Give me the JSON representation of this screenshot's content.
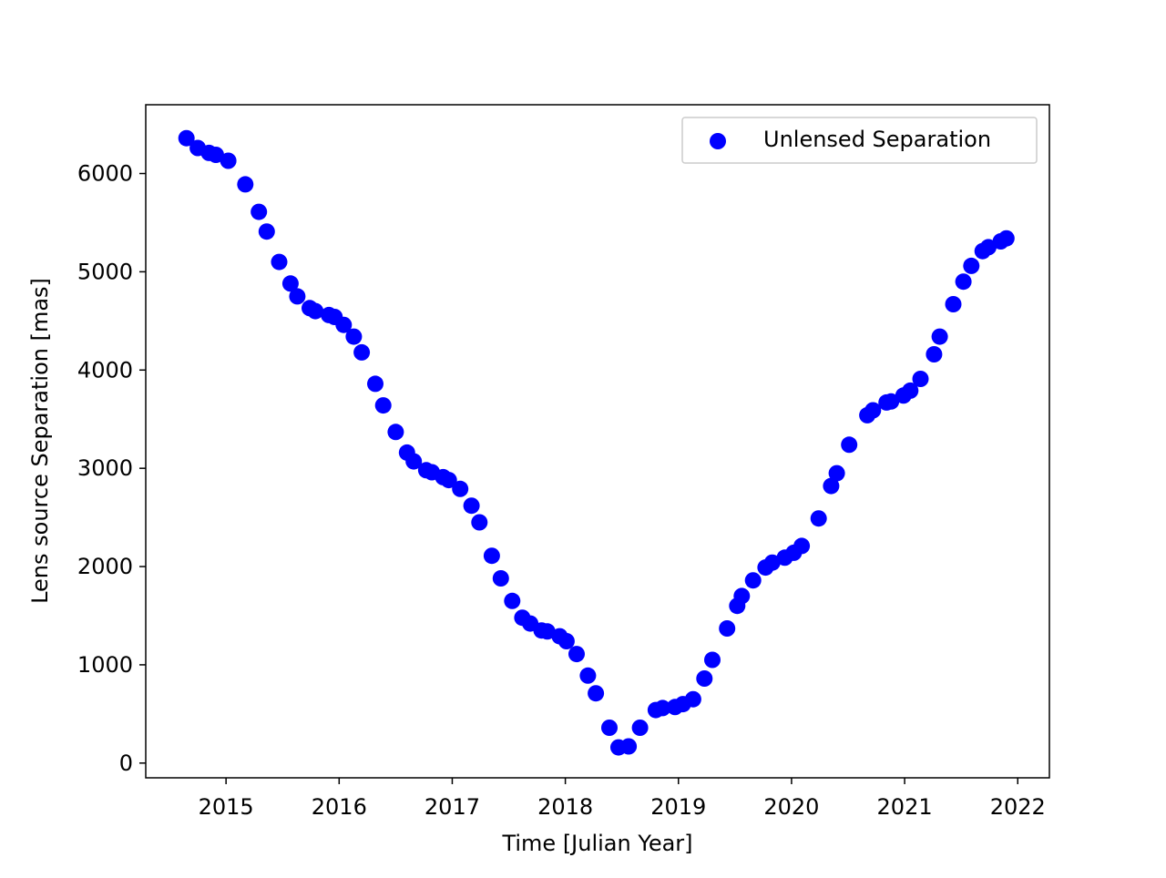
{
  "chart_data": {
    "type": "scatter",
    "title": "",
    "xlabel": "Time [Julian Year]",
    "ylabel": "Lens source Separation [mas]",
    "xlim": [
      2014.29,
      2022.28
    ],
    "ylim": [
      -150,
      6700
    ],
    "xticks": [
      2015,
      2016,
      2017,
      2018,
      2019,
      2020,
      2021,
      2022
    ],
    "xtick_labels": [
      "2015",
      "2016",
      "2017",
      "2018",
      "2019",
      "2020",
      "2021",
      "2022"
    ],
    "yticks": [
      0,
      1000,
      2000,
      3000,
      4000,
      5000,
      6000
    ],
    "ytick_labels": [
      "0",
      "1000",
      "2000",
      "3000",
      "4000",
      "5000",
      "6000"
    ],
    "grid": false,
    "legend_position": "top-right",
    "series": [
      {
        "name": "Unlensed Separation",
        "color": "#0000ff",
        "marker": "circle",
        "x": [
          2014.65,
          2014.75,
          2014.85,
          2014.91,
          2015.02,
          2015.17,
          2015.29,
          2015.36,
          2015.47,
          2015.57,
          2015.63,
          2015.74,
          2015.79,
          2015.91,
          2015.96,
          2016.04,
          2016.13,
          2016.2,
          2016.32,
          2016.39,
          2016.5,
          2016.6,
          2016.66,
          2016.77,
          2016.82,
          2016.92,
          2016.97,
          2017.07,
          2017.17,
          2017.24,
          2017.35,
          2017.43,
          2017.53,
          2017.62,
          2017.69,
          2017.79,
          2017.84,
          2017.95,
          2018.01,
          2018.1,
          2018.2,
          2018.27,
          2018.39,
          2018.47,
          2018.56,
          2018.66,
          2018.8,
          2018.86,
          2018.97,
          2019.04,
          2019.13,
          2019.23,
          2019.3,
          2019.43,
          2019.52,
          2019.56,
          2019.66,
          2019.77,
          2019.83,
          2019.94,
          2020.02,
          2020.09,
          2020.24,
          2020.35,
          2020.4,
          2020.51,
          2020.67,
          2020.72,
          2020.84,
          2020.88,
          2020.99,
          2021.05,
          2021.14,
          2021.26,
          2021.31,
          2021.43,
          2021.52,
          2021.59,
          2021.69,
          2021.74,
          2021.85,
          2021.9
        ],
        "y": [
          6360,
          6260,
          6210,
          6190,
          6130,
          5890,
          5610,
          5410,
          5100,
          4880,
          4750,
          4630,
          4600,
          4560,
          4540,
          4460,
          4340,
          4180,
          3860,
          3640,
          3370,
          3160,
          3070,
          2980,
          2960,
          2910,
          2880,
          2790,
          2620,
          2450,
          2110,
          1880,
          1650,
          1480,
          1420,
          1350,
          1340,
          1290,
          1240,
          1110,
          890,
          710,
          360,
          160,
          170,
          360,
          540,
          560,
          570,
          600,
          650,
          860,
          1050,
          1370,
          1600,
          1700,
          1860,
          1990,
          2040,
          2090,
          2140,
          2210,
          2490,
          2820,
          2950,
          3240,
          3540,
          3590,
          3670,
          3680,
          3740,
          3790,
          3910,
          4160,
          4340,
          4670,
          4900,
          5060,
          5210,
          5250,
          5310,
          5340
        ]
      }
    ]
  }
}
